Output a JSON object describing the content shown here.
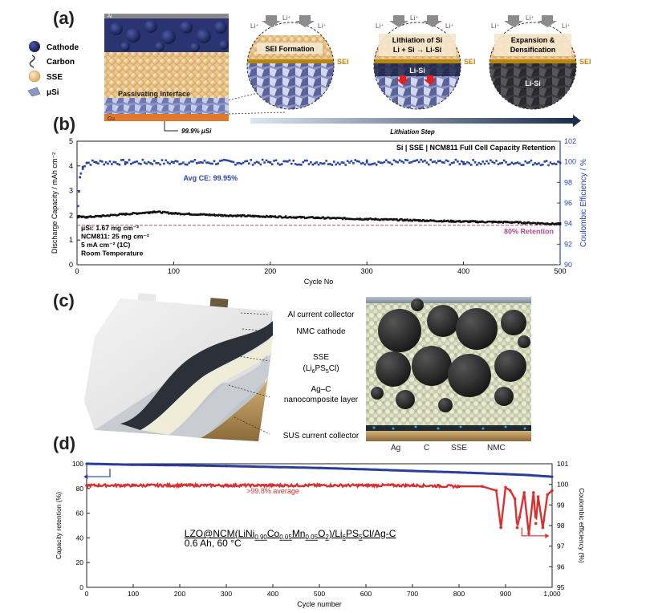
{
  "panels": {
    "a": "(a)",
    "b": "(b)",
    "c": "(c)",
    "d": "(d)"
  },
  "panel_a": {
    "legend": [
      {
        "label": "Cathode",
        "icon": "cathode-particle-icon"
      },
      {
        "label": "Carbon",
        "icon": "carbon-squiggle-icon"
      },
      {
        "label": "SSE",
        "icon": "sse-particle-icon"
      },
      {
        "label": "μSi",
        "icon": "si-flake-icon"
      }
    ],
    "cell": {
      "top": "Al",
      "interface": "Passivating Interface",
      "bottom": "Cu",
      "si_label": "99.9% μSi"
    },
    "li_plus": "Li⁺",
    "sei": "SEI",
    "circles": [
      {
        "title": "SEI Formation",
        "lower": ""
      },
      {
        "title": "Lithiation of Si",
        "subtitle": "Li + Si → Li-Si",
        "lower": "Li-Si"
      },
      {
        "title": "Expansion &",
        "subtitle": "Densification",
        "lower": "Li-Si"
      }
    ],
    "arrow_label": "Lithiation Step",
    "colors": {
      "cathode": "#1c2560",
      "sse": "#e9c48a",
      "cu": "#e07a2a",
      "si": "#a8b0d8",
      "sei": "#b8860b"
    }
  },
  "panel_c": {
    "labels": [
      "Al current collector",
      "NMC cathode",
      "SSE",
      "(Li6PS5Cl)",
      "Ag–C",
      "nanocomposite layer",
      "SUS current collector"
    ],
    "legend": [
      {
        "label": "Ag",
        "color": "#29a8e0"
      },
      {
        "label": "C",
        "color": "#444444"
      },
      {
        "label": "SSE",
        "color": "#f3e3a0"
      },
      {
        "label": "NMC",
        "color": "#222222"
      }
    ]
  },
  "chart_data": [
    {
      "type": "line",
      "panel": "b",
      "title": "Si | SSE | NCM811 Full Cell Capacity Retention",
      "xlabel": "Cycle No",
      "ylabel": "Discharge Capacity / mAh cm⁻²",
      "y2label": "Coulombic Efficiency / %",
      "xlim": [
        0,
        500
      ],
      "ylim": [
        0,
        5
      ],
      "y2lim": [
        90,
        102
      ],
      "xticks": [
        0,
        100,
        200,
        300,
        400,
        500
      ],
      "yticks": [
        0,
        1,
        2,
        3,
        4,
        5
      ],
      "y2ticks": [
        90,
        92,
        94,
        96,
        98,
        100,
        102
      ],
      "annotations": [
        "Avg CE: 99.95%",
        "80% Retention"
      ],
      "info": [
        "μSi: 1.67 mg cm⁻²",
        "NCM811: 25 mg cm⁻²",
        "5 mA cm⁻² (1C)",
        "Room Temperature"
      ],
      "retention_line": 1.6,
      "series": [
        {
          "axis": "left",
          "color": "#111111",
          "x": [
            1,
            10,
            25,
            50,
            75,
            80,
            100,
            150,
            200,
            250,
            300,
            350,
            400,
            450,
            500
          ],
          "values": [
            1.93,
            1.93,
            1.97,
            2.05,
            2.12,
            2.15,
            2.08,
            2.0,
            1.95,
            1.9,
            1.85,
            1.8,
            1.75,
            1.72,
            1.65
          ]
        },
        {
          "axis": "right",
          "color": "#2b44a8",
          "x": [
            1,
            3,
            6,
            10,
            20,
            50,
            100,
            200,
            300,
            400,
            500
          ],
          "values": [
            95.7,
            98.5,
            99.5,
            99.9,
            99.95,
            99.95,
            99.95,
            99.95,
            99.95,
            99.95,
            99.9
          ]
        }
      ]
    },
    {
      "type": "line",
      "panel": "d",
      "xlabel": "Cycle number",
      "ylabel": "Capacity retention (%)",
      "y2label": "Coulombic efficiency (%)",
      "xlim": [
        0,
        1000
      ],
      "ylim": [
        0,
        100
      ],
      "y2lim": [
        95,
        101
      ],
      "xticks": [
        0,
        100,
        200,
        300,
        400,
        500,
        600,
        700,
        800,
        900,
        1000
      ],
      "xticklabels": [
        "0",
        "100",
        "200",
        "300",
        "400",
        "500",
        "600",
        "700",
        "800",
        "900",
        "1,000"
      ],
      "yticks": [
        0,
        20,
        40,
        60,
        80,
        100
      ],
      "y2ticks": [
        95,
        96,
        97,
        98,
        99,
        100,
        101
      ],
      "annotations": [
        ">99.8% average"
      ],
      "cell_label": {
        "line1_parts": [
          "LZO@NCM(LiNi",
          "0.90",
          "Co",
          "0.05",
          "Mn",
          "0.05",
          "O",
          "2",
          ")/Li",
          "6",
          "PS",
          "5",
          "Cl/Ag-C"
        ],
        "line2": "0.6 Ah, 60 °C"
      },
      "series": [
        {
          "axis": "left",
          "color": "#2a3d9a",
          "x": [
            0,
            100,
            200,
            300,
            400,
            500,
            600,
            700,
            800,
            900,
            950,
            1000
          ],
          "values": [
            100,
            99.2,
            98.8,
            98.2,
            97.4,
            96.6,
            95.5,
            94.2,
            93,
            91.6,
            90.8,
            89.5
          ]
        },
        {
          "axis": "right",
          "color": "#d93030",
          "x": [
            0,
            100,
            200,
            300,
            400,
            500,
            600,
            700,
            800,
            850,
            880,
            890,
            900,
            910,
            920,
            925,
            930,
            940,
            950,
            960,
            965,
            970,
            980,
            990,
            1000
          ],
          "values": [
            99.95,
            99.95,
            99.95,
            99.95,
            99.95,
            99.95,
            99.95,
            99.95,
            99.9,
            99.9,
            99.7,
            97.9,
            99.85,
            99.7,
            99.3,
            97.9,
            98.4,
            99.6,
            97.6,
            99.6,
            98.1,
            99.4,
            97.9,
            99.5,
            99.7
          ]
        }
      ]
    }
  ]
}
